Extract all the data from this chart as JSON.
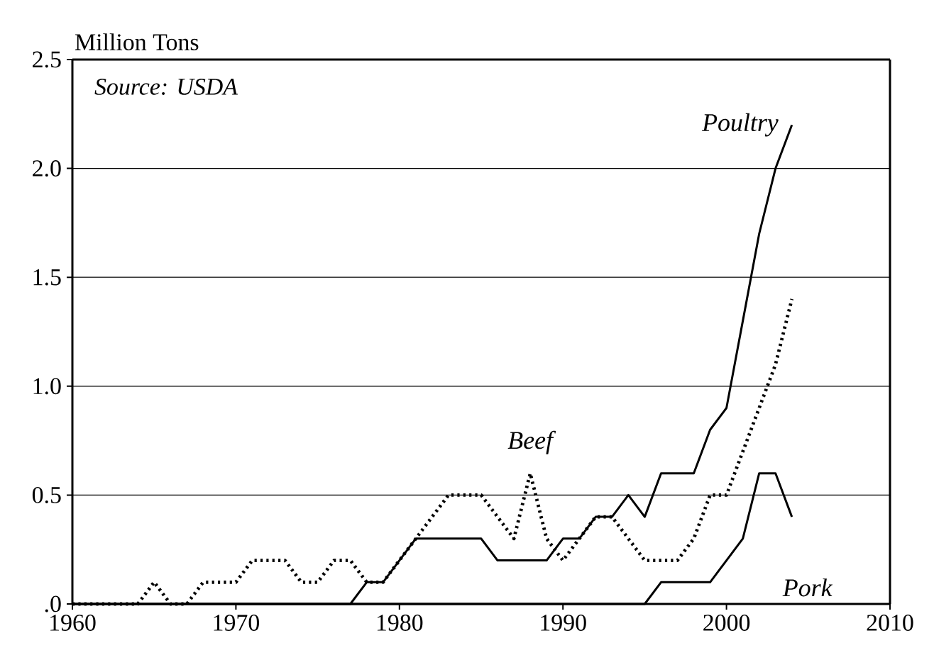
{
  "chart_data": {
    "type": "line",
    "ylabel": "Million Tons",
    "annotations": [
      "Source: USDA"
    ],
    "x": [
      1960,
      1961,
      1962,
      1963,
      1964,
      1965,
      1966,
      1967,
      1968,
      1969,
      1970,
      1971,
      1972,
      1973,
      1974,
      1975,
      1976,
      1977,
      1978,
      1979,
      1980,
      1981,
      1982,
      1983,
      1984,
      1985,
      1986,
      1987,
      1988,
      1989,
      1990,
      1991,
      1992,
      1993,
      1994,
      1995,
      1996,
      1997,
      1998,
      1999,
      2000,
      2001,
      2002,
      2003,
      2004
    ],
    "series": [
      {
        "name": "Poultry",
        "color": "#000000",
        "line_style": "solid",
        "values": [
          0,
          0,
          0,
          0,
          0,
          0,
          0,
          0,
          0,
          0,
          0,
          0,
          0,
          0,
          0,
          0,
          0,
          0,
          0.1,
          0.1,
          0.2,
          0.3,
          0.3,
          0.3,
          0.3,
          0.3,
          0.2,
          0.2,
          0.2,
          0.2,
          0.3,
          0.3,
          0.4,
          0.4,
          0.5,
          0.4,
          0.6,
          0.6,
          0.6,
          0.8,
          0.9,
          1.3,
          1.7,
          2.0,
          2.2
        ]
      },
      {
        "name": "Beef",
        "color": "#000000",
        "line_style": "dotted",
        "values": [
          0,
          0,
          0,
          0,
          0,
          0.1,
          0,
          0,
          0.1,
          0.1,
          0.1,
          0.2,
          0.2,
          0.2,
          0.1,
          0.1,
          0.2,
          0.2,
          0.1,
          0.1,
          0.2,
          0.3,
          0.4,
          0.5,
          0.5,
          0.5,
          0.4,
          0.3,
          0.6,
          0.3,
          0.2,
          0.3,
          0.4,
          0.4,
          0.3,
          0.2,
          0.2,
          0.2,
          0.3,
          0.5,
          0.5,
          0.7,
          0.9,
          1.1,
          1.4
        ]
      },
      {
        "name": "Pork",
        "color": "#000000",
        "line_style": "solid",
        "values": [
          0,
          0,
          0,
          0,
          0,
          0,
          0,
          0,
          0,
          0,
          0,
          0,
          0,
          0,
          0,
          0,
          0,
          0,
          0,
          0,
          0,
          0,
          0,
          0,
          0,
          0,
          0,
          0,
          0,
          0,
          0,
          0,
          0,
          0,
          0,
          0,
          0.1,
          0.1,
          0.1,
          0.1,
          0.2,
          0.3,
          0.6,
          0.6,
          0.4
        ]
      }
    ],
    "xlim": [
      1960,
      2010
    ],
    "xticks": [
      1960,
      1970,
      1980,
      1990,
      2000,
      2010
    ],
    "ylim": [
      0,
      2.5
    ],
    "yticks": [
      {
        "value": 0,
        "label": ".0"
      },
      {
        "value": 0.5,
        "label": "0.5"
      },
      {
        "value": 1,
        "label": "1.0"
      },
      {
        "value": 1.5,
        "label": "1.5"
      },
      {
        "value": 2,
        "label": "2.0"
      },
      {
        "value": 2.5,
        "label": "2.5"
      }
    ],
    "grid": "y",
    "marker": "none"
  }
}
